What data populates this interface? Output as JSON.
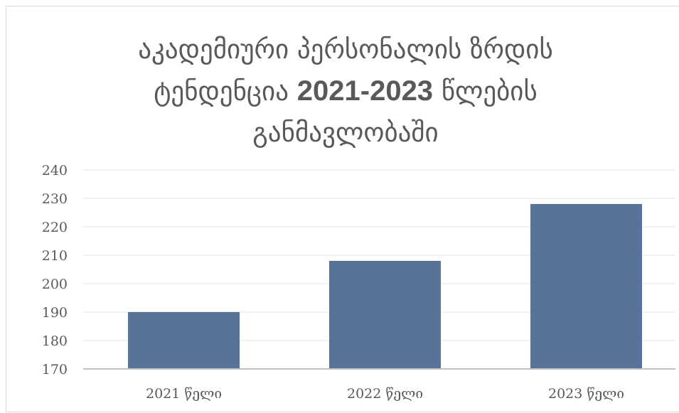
{
  "chart_data": {
    "type": "bar",
    "title": [
      "აკადემიური პერსონალის ზრდის",
      "ტენდენცია 2021-2023 წლების",
      "განმავლობაში"
    ],
    "categories": [
      "2021 წელი",
      "2022 წელი",
      "2023 წელი"
    ],
    "values": [
      190,
      208,
      228
    ],
    "ylim": [
      170,
      240
    ],
    "yticks": [
      170,
      180,
      190,
      200,
      210,
      220,
      230,
      240
    ],
    "grid": true,
    "legend": "none",
    "colors": {
      "bar": "#587399",
      "grid": "#e4e4e4",
      "axis": "#bfbfbf",
      "text": "#595959"
    }
  }
}
